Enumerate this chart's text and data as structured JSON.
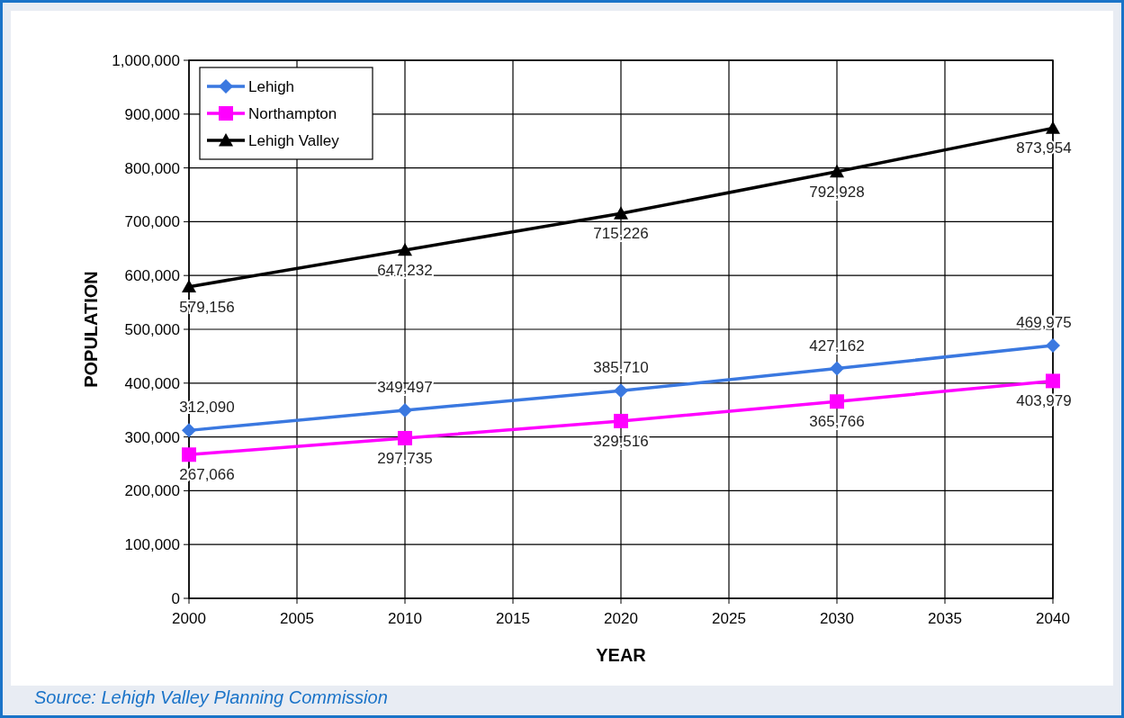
{
  "chart_data": {
    "type": "line",
    "xlabel": "YEAR",
    "ylabel": "POPULATION",
    "x": [
      2000,
      2010,
      2020,
      2030,
      2040
    ],
    "series": [
      {
        "name": "Lehigh",
        "color": "#3a78e0",
        "marker": "diamond",
        "values": [
          312090,
          349497,
          385710,
          427162,
          469975
        ],
        "value_labels": [
          "312,090",
          "349,497",
          "385,710",
          "427,162",
          "469,975"
        ]
      },
      {
        "name": "Northampton",
        "color": "#ff00ff",
        "marker": "square",
        "values": [
          267066,
          297735,
          329516,
          365766,
          403979
        ],
        "value_labels": [
          "267,066",
          "297,735",
          "329,516",
          "365,766",
          "403,979"
        ]
      },
      {
        "name": "Lehigh Valley",
        "color": "#000000",
        "marker": "triangle",
        "values": [
          579156,
          647232,
          715226,
          792928,
          873954
        ],
        "value_labels": [
          "579,156",
          "647,232",
          "715,226",
          "792,928",
          "873,954"
        ]
      }
    ],
    "xlim": [
      2000,
      2040
    ],
    "xticks": [
      2000,
      2005,
      2010,
      2015,
      2020,
      2025,
      2030,
      2035,
      2040
    ],
    "ylim": [
      0,
      1000000
    ],
    "yticks": [
      {
        "value": 0,
        "label": "0"
      },
      {
        "value": 100000,
        "label": "100,000"
      },
      {
        "value": 200000,
        "label": "200,000"
      },
      {
        "value": 300000,
        "label": "300,000"
      },
      {
        "value": 400000,
        "label": "400,000"
      },
      {
        "value": 500000,
        "label": "500,000"
      },
      {
        "value": 600000,
        "label": "600,000"
      },
      {
        "value": 700000,
        "label": "700,000"
      },
      {
        "value": 800000,
        "label": "800,000"
      },
      {
        "value": 900000,
        "label": "900,000"
      },
      {
        "value": 1000000,
        "label": "1,000,000"
      }
    ],
    "grid": true,
    "legend": "top left",
    "line_style": "solid",
    "annotations": [
      "Source:  Lehigh Valley Planning Commission"
    ]
  }
}
